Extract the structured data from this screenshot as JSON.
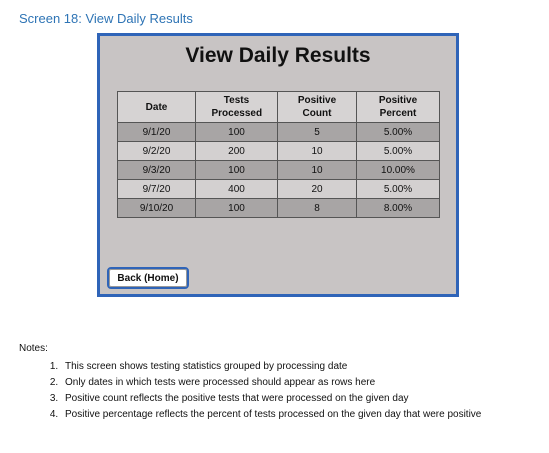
{
  "screen_heading": "Screen 18: View Daily Results",
  "mockup": {
    "title": "View Daily Results",
    "columns": [
      "Date",
      "Tests Processed",
      "Positive Count",
      "Positive Percent"
    ],
    "rows": [
      {
        "date": "9/1/20",
        "tests": "100",
        "positive": "5",
        "percent": "5.00%"
      },
      {
        "date": "9/2/20",
        "tests": "200",
        "positive": "10",
        "percent": "5.00%"
      },
      {
        "date": "9/3/20",
        "tests": "100",
        "positive": "10",
        "percent": "10.00%"
      },
      {
        "date": "9/7/20",
        "tests": "400",
        "positive": "20",
        "percent": "5.00%"
      },
      {
        "date": "9/10/20",
        "tests": "100",
        "positive": "8",
        "percent": "8.00%"
      }
    ],
    "back_button": "Back (Home)"
  },
  "notes": {
    "label": "Notes:",
    "items": [
      "This screen shows testing statistics grouped by processing date",
      "Only dates in which tests were processed should appear as rows here",
      "Positive count reflects the positive tests that were processed on the given day",
      "Positive percentage reflects the percent of tests processed on the given day that were positive"
    ]
  },
  "colors": {
    "heading_blue": "#2e74b5",
    "frame_border": "#2f64b8",
    "frame_background": "#c8c4c4",
    "row_dark": "#a8a5a5",
    "row_light": "#d3d0d0"
  }
}
